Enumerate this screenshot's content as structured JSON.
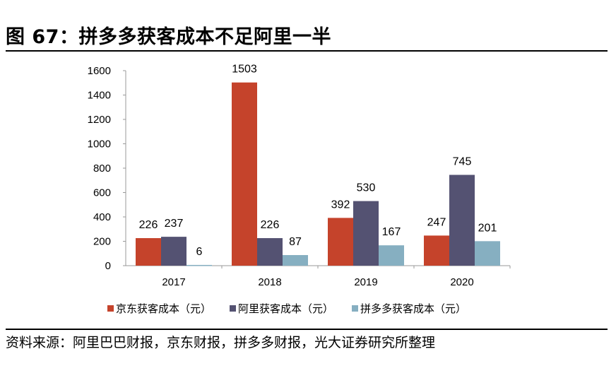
{
  "title": "图 67：拼多多获客成本不足阿里一半",
  "source": "资料来源：阿里巴巴财报，京东财报，拼多多财报，光大证券研究所整理",
  "chart_data": {
    "type": "bar",
    "title": "图 67：拼多多获客成本不足阿里一半",
    "xlabel": "",
    "ylabel": "",
    "categories": [
      "2017",
      "2018",
      "2019",
      "2020"
    ],
    "series": [
      {
        "name": "京东获客成本（元）",
        "color": "#C5432B",
        "values": [
          226,
          1503,
          392,
          247
        ]
      },
      {
        "name": "阿里获客成本（元）",
        "color": "#545272",
        "values": [
          237,
          226,
          530,
          745
        ]
      },
      {
        "name": "拼多多获客成本（元）",
        "color": "#86AFC1",
        "values": [
          6,
          87,
          167,
          201
        ]
      }
    ],
    "ylim": [
      0,
      1600
    ],
    "yticks": [
      0,
      200,
      400,
      600,
      800,
      1000,
      1200,
      1400,
      1600
    ],
    "grid": false,
    "legend_position": "bottom"
  }
}
